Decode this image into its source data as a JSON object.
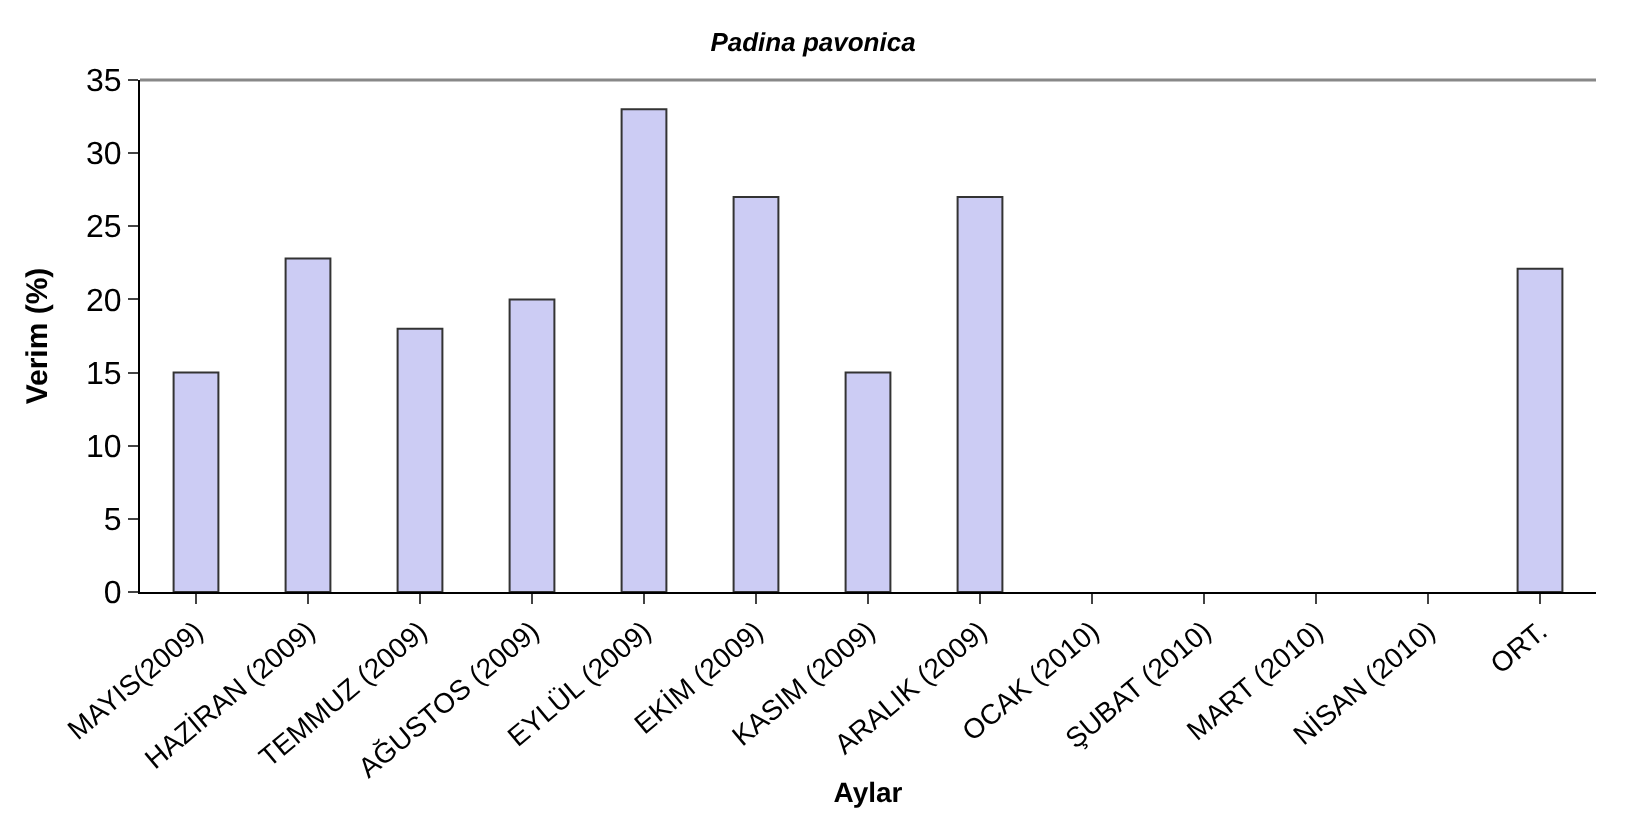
{
  "chart_data": {
    "type": "bar",
    "title": "Padina pavonica",
    "xlabel": "Aylar",
    "ylabel": "Verim (%)",
    "categories": [
      "MAYIS(2009)",
      "HAZİRAN (2009)",
      "TEMMUZ (2009)",
      "AĞUSTOS (2009)",
      "EYLÜL (2009)",
      "EKİM (2009)",
      "KASIM (2009)",
      "ARALIK (2009)",
      "OCAK (2010)",
      "ŞUBAT (2010)",
      "MART (2010)",
      "NİSAN (2010)",
      "ORT."
    ],
    "values": [
      15,
      22.8,
      18,
      20,
      33,
      27,
      15,
      27,
      null,
      null,
      null,
      null,
      22.1
    ],
    "color": "#ccccf4",
    "ylim": [
      0,
      35
    ],
    "yticks": [
      0,
      5,
      10,
      15,
      20,
      25,
      30,
      35
    ],
    "grid": false
  }
}
